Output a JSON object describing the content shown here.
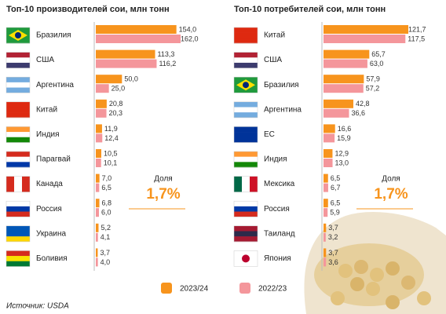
{
  "chart_data": [
    {
      "type": "bar",
      "title": "Топ-10 производителей сои, млн тонн",
      "categories": [
        "Бразилия",
        "США",
        "Аргентина",
        "Китай",
        "Индия",
        "Парагвай",
        "Канада",
        "Россия",
        "Украина",
        "Боливия"
      ],
      "series": [
        {
          "name": "2023/24",
          "color": "#f7941d",
          "values": [
            154.0,
            113.3,
            50.0,
            20.8,
            11.9,
            10.5,
            7.0,
            6.8,
            5.2,
            3.7
          ],
          "value_labels": [
            "154,0",
            "113,3",
            "50,0",
            "20,8",
            "11,9",
            "10,5",
            "7,0",
            "6,8",
            "5,2",
            "3,7"
          ]
        },
        {
          "name": "2022/23",
          "color": "#f4969b",
          "values": [
            162.0,
            116.2,
            25.0,
            20.3,
            12.4,
            10.1,
            6.5,
            6.0,
            4.1,
            4.0
          ],
          "value_labels": [
            "162,0",
            "116,2",
            "25,0",
            "20,3",
            "12,4",
            "10,1",
            "6,5",
            "6,0",
            "4,1",
            "4,0"
          ]
        }
      ],
      "annotation_title": "Доля",
      "annotation": "1,7%"
    },
    {
      "type": "bar",
      "title": "Топ-10 потребителей сои, млн тонн",
      "categories": [
        "Китай",
        "США",
        "Бразилия",
        "Аргентина",
        "ЕС",
        "Индия",
        "Мексика",
        "Россия",
        "Таиланд",
        "Япония"
      ],
      "series": [
        {
          "color": "#f7941d",
          "values": [
            121.7,
            65.7,
            57.9,
            42.8,
            16.6,
            12.9,
            6.5,
            6.5,
            3.7,
            3.7
          ],
          "value_labels": [
            "121,7",
            "65,7",
            "57,9",
            "42,8",
            "16,6",
            "12,9",
            "6,5",
            "6,5",
            "3,7",
            "3,7"
          ]
        },
        {
          "color": "#f4969b",
          "values": [
            117.5,
            63.0,
            57.2,
            36.6,
            15.9,
            13.0,
            6.7,
            5.9,
            3.2,
            3.6
          ],
          "value_labels": [
            "117,5",
            "63,0",
            "57,2",
            "36,6",
            "15,9",
            "13,0",
            "6,7",
            "5,9",
            "3,2",
            "3,6"
          ]
        }
      ],
      "annotation_title": "Доля",
      "annotation": "1,7%"
    }
  ],
  "source": "Источник: USDA"
}
